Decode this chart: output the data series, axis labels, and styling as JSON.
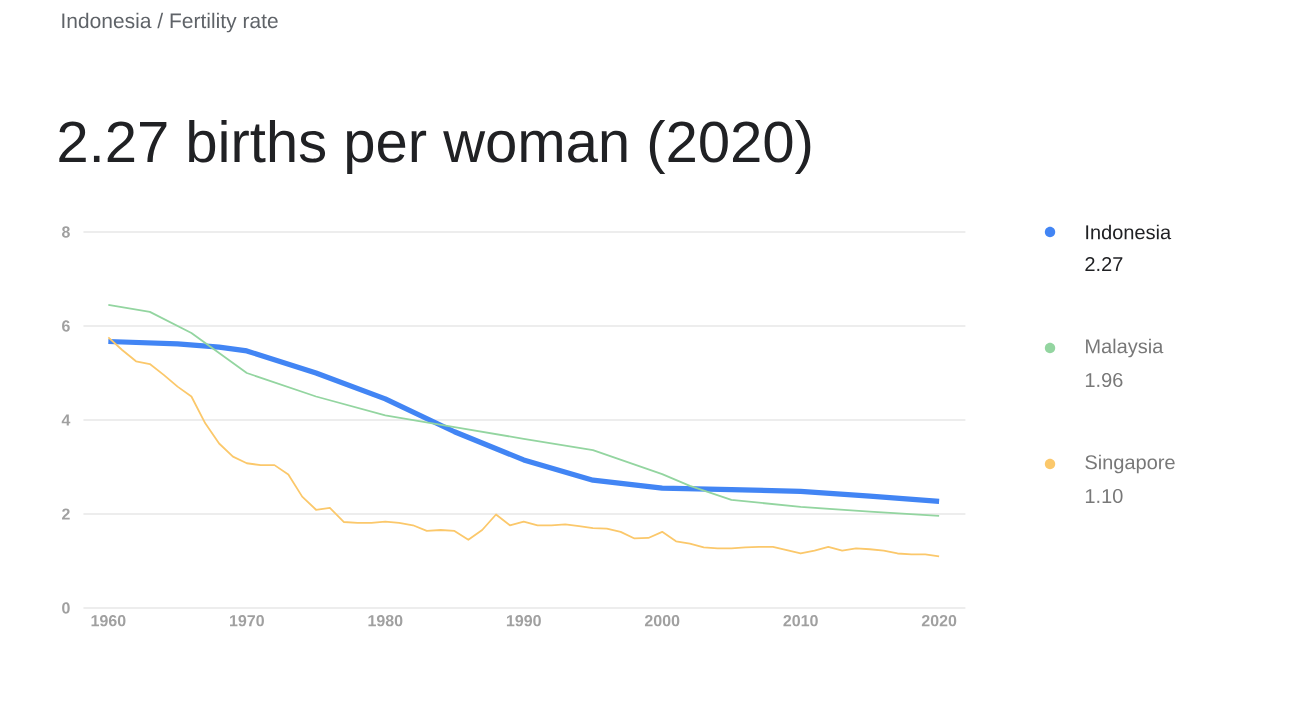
{
  "chart_data": {
    "type": "line",
    "title": "2.27 births per woman (2020)",
    "annotations": [
      "Indonesia / Fertility rate",
      "2.27",
      "1.96",
      "1.10"
    ],
    "xlim": [
      1958.2,
      2021.9
    ],
    "xticks": [
      1960,
      1970,
      1980,
      1990,
      2000,
      2010,
      2020
    ],
    "ylim": [
      0,
      8
    ],
    "yticks": [
      0,
      2,
      4,
      6,
      8
    ],
    "grid": "y",
    "legend": "right",
    "marker": "none",
    "line_style": "solid",
    "series": [
      {
        "name": "Indonesia",
        "color": "#4285f4",
        "x": [
          1960,
          1965,
          1968,
          1970,
          1975,
          1980,
          1985,
          1990,
          1995,
          2000,
          2005,
          2010,
          2015,
          2020
        ],
        "values": [
          5.67,
          5.62,
          5.55,
          5.47,
          5.0,
          4.45,
          3.75,
          3.15,
          2.72,
          2.55,
          2.52,
          2.48,
          2.38,
          2.27
        ]
      },
      {
        "name": "Malaysia",
        "color": "#93d5a0",
        "x": [
          1960,
          1963,
          1966,
          1970,
          1975,
          1980,
          1985,
          1990,
          1995,
          2000,
          2002,
          2005,
          2010,
          2015,
          2020
        ],
        "values": [
          6.45,
          6.3,
          5.85,
          5.0,
          4.5,
          4.1,
          3.85,
          3.6,
          3.36,
          2.85,
          2.6,
          2.3,
          2.15,
          2.05,
          1.96
        ]
      },
      {
        "name": "Singapore",
        "color": "#fbc86b",
        "x": [
          1960,
          1961,
          1962,
          1963,
          1964,
          1965,
          1966,
          1967,
          1968,
          1969,
          1970,
          1971,
          1972,
          1973,
          1974,
          1975,
          1976,
          1977,
          1978,
          1979,
          1980,
          1981,
          1982,
          1983,
          1984,
          1985,
          1986,
          1987,
          1988,
          1989,
          1990,
          1991,
          1992,
          1993,
          1994,
          1995,
          1996,
          1997,
          1998,
          1999,
          2000,
          2001,
          2002,
          2003,
          2004,
          2005,
          2006,
          2007,
          2008,
          2009,
          2010,
          2011,
          2012,
          2013,
          2014,
          2015,
          2016,
          2017,
          2018,
          2019,
          2020
        ],
        "values": [
          5.76,
          5.49,
          5.25,
          5.19,
          4.96,
          4.71,
          4.5,
          3.93,
          3.5,
          3.22,
          3.08,
          3.04,
          3.04,
          2.84,
          2.37,
          2.09,
          2.13,
          1.83,
          1.81,
          1.81,
          1.84,
          1.81,
          1.76,
          1.64,
          1.66,
          1.64,
          1.45,
          1.66,
          1.99,
          1.76,
          1.84,
          1.76,
          1.76,
          1.78,
          1.74,
          1.7,
          1.69,
          1.62,
          1.48,
          1.49,
          1.62,
          1.42,
          1.37,
          1.29,
          1.27,
          1.27,
          1.29,
          1.3,
          1.3,
          1.23,
          1.16,
          1.22,
          1.3,
          1.22,
          1.27,
          1.25,
          1.22,
          1.16,
          1.14,
          1.14,
          1.1
        ]
      }
    ]
  }
}
